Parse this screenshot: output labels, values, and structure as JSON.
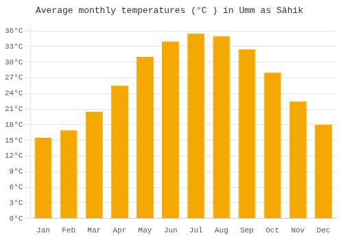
{
  "chart_data": {
    "type": "bar",
    "title": "Average monthly temperatures (°C ) in Umm as Sāhik",
    "categories": [
      "Jan",
      "Feb",
      "Mar",
      "Apr",
      "May",
      "Jun",
      "Jul",
      "Aug",
      "Sep",
      "Oct",
      "Nov",
      "Dec"
    ],
    "values": [
      15.5,
      17.0,
      20.5,
      25.5,
      31.0,
      34.0,
      35.5,
      35.0,
      32.5,
      28.0,
      22.5,
      18.0
    ],
    "color": "#F5A800",
    "ylim": [
      0,
      37.5
    ],
    "yticks": [
      {
        "value": 0,
        "label": "0°C"
      },
      {
        "value": 3,
        "label": "3°C"
      },
      {
        "value": 6,
        "label": "6°C"
      },
      {
        "value": 9,
        "label": "9°C"
      },
      {
        "value": 12,
        "label": "12°C"
      },
      {
        "value": 15,
        "label": "15°C"
      },
      {
        "value": 18,
        "label": "18°C"
      },
      {
        "value": 21,
        "label": "21°C"
      },
      {
        "value": 24,
        "label": "24°C"
      },
      {
        "value": 27,
        "label": "27°C"
      },
      {
        "value": 30,
        "label": "30°C"
      },
      {
        "value": 33,
        "label": "33°C"
      },
      {
        "value": 36,
        "label": "36°C"
      }
    ],
    "grid": true
  }
}
